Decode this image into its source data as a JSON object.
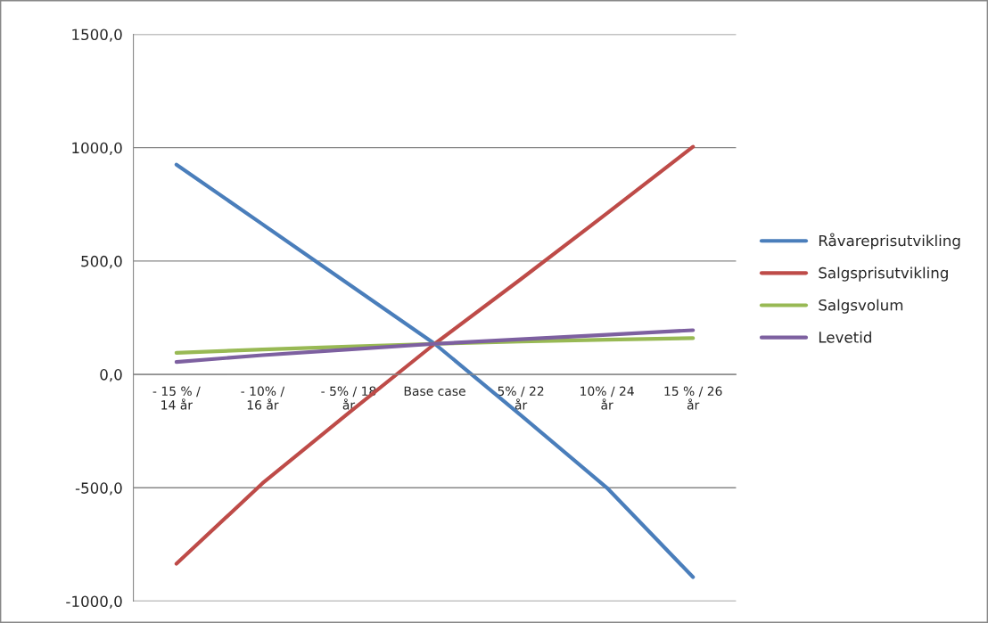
{
  "chart_data": {
    "type": "line",
    "categories": [
      "- 15 % /\n14 år",
      "- 10% /\n16 år",
      "- 5% / 18\når",
      "Base case",
      "5% / 22\når",
      "10% / 24\når",
      "15 % / 26\når"
    ],
    "series": [
      {
        "name": "Råvareprisutvikling",
        "color": "#4a7ebb",
        "values": [
          925,
          662,
          398,
          135,
          -180,
          -500,
          -894
        ]
      },
      {
        "name": "Salgsprisutvikling",
        "color": "#be4b48",
        "values": [
          -835,
          -480,
          -170,
          135,
          420,
          710,
          1004
        ]
      },
      {
        "name": "Salgsvolum",
        "color": "#98b954",
        "values": [
          95,
          110,
          123,
          135,
          145,
          153,
          160
        ]
      },
      {
        "name": "Levetid",
        "color": "#7d60a0",
        "values": [
          55,
          85,
          110,
          135,
          155,
          175,
          195
        ]
      }
    ],
    "ylim": [
      -1000,
      1500
    ],
    "yticks": [
      {
        "value": -1000,
        "label": "-1000,0"
      },
      {
        "value": -500,
        "label": "-500,0"
      },
      {
        "value": 0,
        "label": "0,0"
      },
      {
        "value": 500,
        "label": "500,0"
      },
      {
        "value": 1000,
        "label": "1000,0"
      },
      {
        "value": 1500,
        "label": "1500,0"
      }
    ],
    "grid": "y",
    "legend": "right",
    "marker": "none",
    "line_style": "solid"
  }
}
